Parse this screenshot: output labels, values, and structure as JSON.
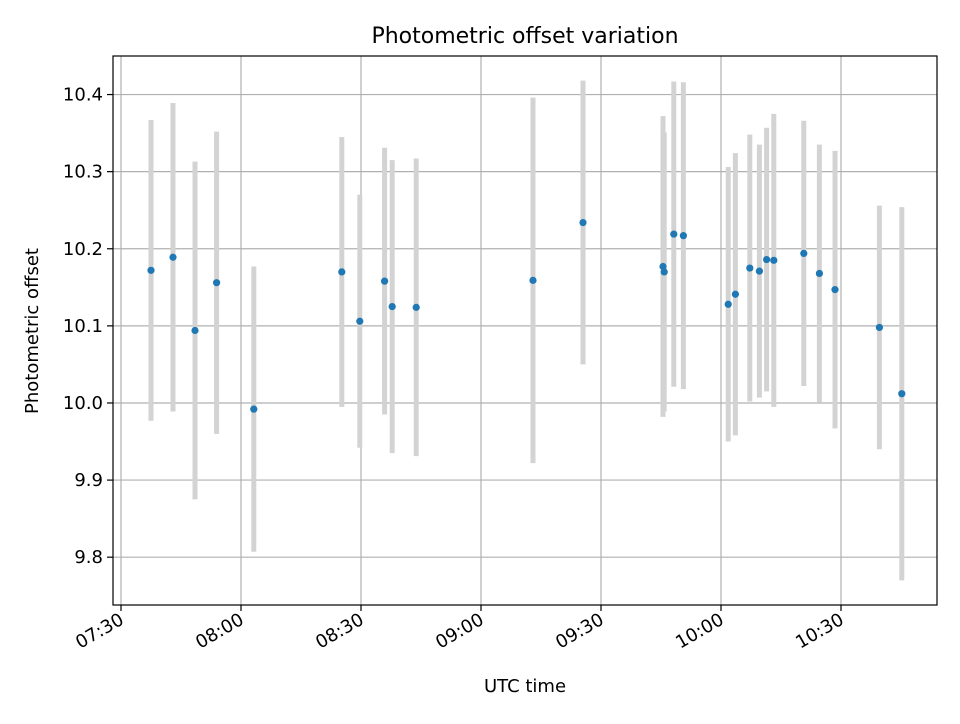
{
  "chart_data": {
    "type": "scatter",
    "title": "Photometric offset variation",
    "xlabel": "UTC time",
    "ylabel": "Photometric offset",
    "x_is_time": true,
    "xlim": [
      "07:28",
      "10:54"
    ],
    "ylim": [
      9.738,
      10.45
    ],
    "xticks": [
      "07:30",
      "08:00",
      "08:30",
      "09:00",
      "09:30",
      "10:00",
      "10:30"
    ],
    "yticks": [
      "9.8",
      "9.9",
      "10.0",
      "10.1",
      "10.2",
      "10.3",
      "10.4"
    ],
    "grid": true,
    "colors": {
      "point": "#1f77b4",
      "errorbar": "#d3d3d3",
      "grid": "#b0b0b0"
    },
    "points": [
      {
        "t": "07:37.5",
        "y": 10.172,
        "err": 0.195
      },
      {
        "t": "07:43.0",
        "y": 10.189,
        "err": 0.2
      },
      {
        "t": "07:48.5",
        "y": 10.094,
        "err": 0.219
      },
      {
        "t": "07:53.9",
        "y": 10.156,
        "err": 0.196
      },
      {
        "t": "08:03.2",
        "y": 9.992,
        "err": 0.185
      },
      {
        "t": "08:25.2",
        "y": 10.17,
        "err": 0.175
      },
      {
        "t": "08:29.7",
        "y": 10.106,
        "err": 0.164
      },
      {
        "t": "08:35.9",
        "y": 10.158,
        "err": 0.173
      },
      {
        "t": "08:37.8",
        "y": 10.125,
        "err": 0.19
      },
      {
        "t": "08:43.8",
        "y": 10.124,
        "err": 0.193
      },
      {
        "t": "09:13.0",
        "y": 10.159,
        "err": 0.237
      },
      {
        "t": "09:25.5",
        "y": 10.234,
        "err": 0.184
      },
      {
        "t": "09:45.5",
        "y": 10.177,
        "err": 0.195
      },
      {
        "t": "09:45.8",
        "y": 10.17,
        "err": 0.181
      },
      {
        "t": "09:48.2",
        "y": 10.219,
        "err": 0.198
      },
      {
        "t": "09:50.6",
        "y": 10.217,
        "err": 0.199
      },
      {
        "t": "10:01.8",
        "y": 10.128,
        "err": 0.178
      },
      {
        "t": "10:03.6",
        "y": 10.141,
        "err": 0.183
      },
      {
        "t": "10:07.2",
        "y": 10.175,
        "err": 0.173
      },
      {
        "t": "10:09.6",
        "y": 10.171,
        "err": 0.164
      },
      {
        "t": "10:11.4",
        "y": 10.186,
        "err": 0.171
      },
      {
        "t": "10:13.2",
        "y": 10.185,
        "err": 0.19
      },
      {
        "t": "10:20.7",
        "y": 10.194,
        "err": 0.172
      },
      {
        "t": "10:24.6",
        "y": 10.168,
        "err": 0.167
      },
      {
        "t": "10:28.5",
        "y": 10.147,
        "err": 0.18
      },
      {
        "t": "10:39.6",
        "y": 10.098,
        "err": 0.158
      },
      {
        "t": "10:45.2",
        "y": 10.012,
        "err": 0.242
      }
    ]
  }
}
